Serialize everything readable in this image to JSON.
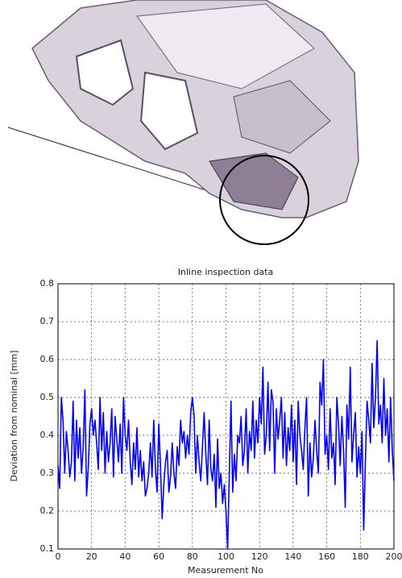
{
  "chart_data": {
    "type": "line",
    "title": "Inline inspection data",
    "xlabel": "Measurement No",
    "ylabel": "Deviation from nominal   [mm]",
    "color": "#0000ff",
    "x": [
      0,
      1,
      2,
      3,
      4,
      5,
      6,
      7,
      8,
      9,
      10,
      11,
      12,
      13,
      14,
      15,
      16,
      17,
      18,
      19,
      20,
      21,
      22,
      23,
      24,
      25,
      26,
      27,
      28,
      29,
      30,
      31,
      32,
      33,
      34,
      35,
      36,
      37,
      38,
      39,
      40,
      41,
      42,
      43,
      44,
      45,
      46,
      47,
      48,
      49,
      50,
      51,
      52,
      53,
      54,
      55,
      56,
      57,
      58,
      59,
      60,
      61,
      62,
      63,
      64,
      65,
      66,
      67,
      68,
      69,
      70,
      71,
      72,
      73,
      74,
      75,
      76,
      77,
      78,
      79,
      80,
      81,
      82,
      83,
      84,
      85,
      86,
      87,
      88,
      89,
      90,
      91,
      92,
      93,
      94,
      95,
      96,
      97,
      98,
      99,
      100,
      101,
      102,
      103,
      104,
      105,
      106,
      107,
      108,
      109,
      110,
      111,
      112,
      113,
      114,
      115,
      116,
      117,
      118,
      119,
      120,
      121,
      122,
      123,
      124,
      125,
      126,
      127,
      128,
      129,
      130,
      131,
      132,
      133,
      134,
      135,
      136,
      137,
      138,
      139,
      140,
      141,
      142,
      143,
      144,
      145,
      146,
      147,
      148,
      149,
      150,
      151,
      152,
      153,
      154,
      155,
      156,
      157,
      158,
      159,
      160,
      161,
      162,
      163,
      164,
      165,
      166,
      167,
      168,
      169,
      170,
      171,
      172,
      173,
      174,
      175,
      176,
      177,
      178,
      179,
      180,
      181,
      182,
      183,
      184,
      185,
      186,
      187,
      188,
      189,
      190,
      191,
      192,
      193,
      194,
      195,
      196,
      197,
      198,
      199,
      200
    ],
    "values": [
      0.32,
      0.26,
      0.5,
      0.44,
      0.3,
      0.41,
      0.36,
      0.29,
      0.33,
      0.49,
      0.28,
      0.44,
      0.34,
      0.42,
      0.3,
      0.37,
      0.52,
      0.24,
      0.31,
      0.43,
      0.47,
      0.4,
      0.44,
      0.38,
      0.31,
      0.5,
      0.36,
      0.46,
      0.3,
      0.41,
      0.33,
      0.38,
      0.47,
      0.29,
      0.45,
      0.39,
      0.33,
      0.43,
      0.3,
      0.5,
      0.4,
      0.36,
      0.44,
      0.33,
      0.27,
      0.38,
      0.31,
      0.42,
      0.29,
      0.36,
      0.28,
      0.33,
      0.24,
      0.26,
      0.3,
      0.38,
      0.29,
      0.44,
      0.31,
      0.25,
      0.43,
      0.32,
      0.18,
      0.27,
      0.33,
      0.36,
      0.25,
      0.29,
      0.38,
      0.3,
      0.26,
      0.37,
      0.32,
      0.44,
      0.38,
      0.41,
      0.34,
      0.4,
      0.35,
      0.46,
      0.5,
      0.45,
      0.3,
      0.4,
      0.33,
      0.28,
      0.37,
      0.46,
      0.35,
      0.27,
      0.44,
      0.31,
      0.28,
      0.35,
      0.21,
      0.39,
      0.26,
      0.3,
      0.22,
      0.27,
      0.2,
      0.1,
      0.3,
      0.49,
      0.25,
      0.35,
      0.28,
      0.4,
      0.38,
      0.45,
      0.32,
      0.36,
      0.47,
      0.3,
      0.41,
      0.36,
      0.49,
      0.34,
      0.44,
      0.38,
      0.5,
      0.43,
      0.58,
      0.35,
      0.4,
      0.54,
      0.36,
      0.52,
      0.49,
      0.3,
      0.47,
      0.39,
      0.44,
      0.5,
      0.34,
      0.46,
      0.32,
      0.42,
      0.36,
      0.48,
      0.33,
      0.44,
      0.27,
      0.49,
      0.4,
      0.36,
      0.31,
      0.42,
      0.5,
      0.24,
      0.38,
      0.29,
      0.34,
      0.44,
      0.36,
      0.3,
      0.54,
      0.48,
      0.6,
      0.35,
      0.4,
      0.31,
      0.47,
      0.34,
      0.38,
      0.27,
      0.5,
      0.43,
      0.32,
      0.45,
      0.36,
      0.21,
      0.48,
      0.39,
      0.58,
      0.33,
      0.4,
      0.46,
      0.29,
      0.37,
      0.3,
      0.41,
      0.15,
      0.33,
      0.49,
      0.44,
      0.38,
      0.59,
      0.42,
      0.5,
      0.65,
      0.43,
      0.48,
      0.38,
      0.55,
      0.4,
      0.47,
      0.33,
      0.5,
      0.36,
      0.28
    ],
    "xlim": [
      0,
      200
    ],
    "xticks": [
      0,
      20,
      40,
      60,
      80,
      100,
      120,
      140,
      160,
      180,
      200
    ],
    "ylim": [
      0.1,
      0.8
    ],
    "yticks": [
      0.1,
      0.2,
      0.3,
      0.4,
      0.5,
      0.6,
      0.7,
      0.8
    ],
    "grid": true
  }
}
